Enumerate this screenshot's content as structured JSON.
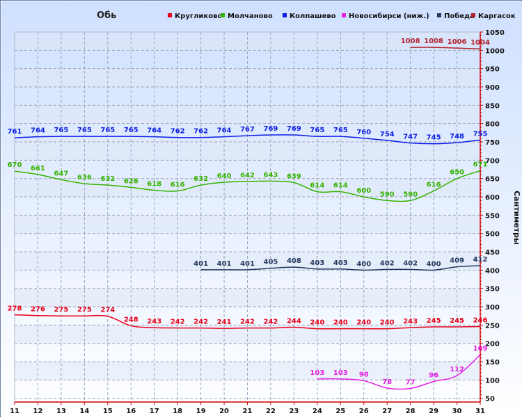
{
  "chart_data": {
    "type": "line",
    "title": "Обь",
    "xlabel": "",
    "ylabel": "Сантиметры",
    "x": [
      11,
      12,
      13,
      14,
      15,
      16,
      17,
      18,
      19,
      20,
      21,
      22,
      23,
      24,
      25,
      26,
      27,
      28,
      29,
      30,
      31
    ],
    "xlim": [
      11,
      31
    ],
    "ylim": [
      40,
      1050
    ],
    "yticks": [
      50,
      100,
      150,
      200,
      250,
      300,
      350,
      400,
      450,
      500,
      550,
      600,
      650,
      700,
      750,
      800,
      850,
      900,
      950,
      1000,
      1050
    ],
    "grid": true,
    "legend_position": "top",
    "background": "gradient",
    "series": [
      {
        "name": "Кругликово",
        "color": "#e8001a",
        "x": [
          11,
          12,
          13,
          14,
          15,
          16,
          17,
          18,
          19,
          20,
          21,
          22,
          23,
          24,
          25,
          26,
          27,
          28,
          29,
          30,
          31
        ],
        "values": [
          278,
          276,
          275,
          275,
          274,
          248,
          243,
          242,
          242,
          241,
          242,
          242,
          244,
          240,
          240,
          240,
          240,
          243,
          245,
          245,
          246
        ]
      },
      {
        "name": "Молчаново",
        "color": "#33b300",
        "x": [
          11,
          12,
          13,
          14,
          15,
          16,
          17,
          18,
          19,
          20,
          21,
          22,
          23,
          24,
          25,
          26,
          27,
          28,
          29,
          30,
          31
        ],
        "values": [
          670,
          661,
          647,
          636,
          632,
          626,
          618,
          616,
          632,
          640,
          642,
          643,
          639,
          614,
          614,
          600,
          590,
          590,
          616,
          650,
          671
        ]
      },
      {
        "name": "Колпашево",
        "color": "#0a1ee6",
        "x": [
          11,
          12,
          13,
          14,
          15,
          16,
          17,
          18,
          19,
          20,
          21,
          22,
          23,
          24,
          25,
          26,
          27,
          28,
          29,
          30,
          31
        ],
        "values": [
          761,
          764,
          765,
          765,
          765,
          765,
          764,
          762,
          762,
          764,
          767,
          769,
          769,
          765,
          765,
          760,
          754,
          747,
          745,
          748,
          755
        ]
      },
      {
        "name": "Новосибирси (ниж.)",
        "color": "#e61ee6",
        "x": [
          24,
          25,
          26,
          27,
          28,
          29,
          30,
          31
        ],
        "values": [
          103,
          103,
          98,
          78,
          77,
          96,
          112,
          169
        ]
      },
      {
        "name": "Победа",
        "color": "#24385e",
        "x": [
          19,
          20,
          21,
          22,
          23,
          24,
          25,
          26,
          27,
          28,
          29,
          30,
          31
        ],
        "values": [
          401,
          401,
          401,
          405,
          408,
          403,
          403,
          400,
          402,
          402,
          400,
          409,
          412
        ]
      },
      {
        "name": "Каргасок",
        "color": "#b22430",
        "x": [
          28,
          29,
          30,
          31
        ],
        "values": [
          1008,
          1008,
          1006,
          1004
        ]
      }
    ]
  }
}
